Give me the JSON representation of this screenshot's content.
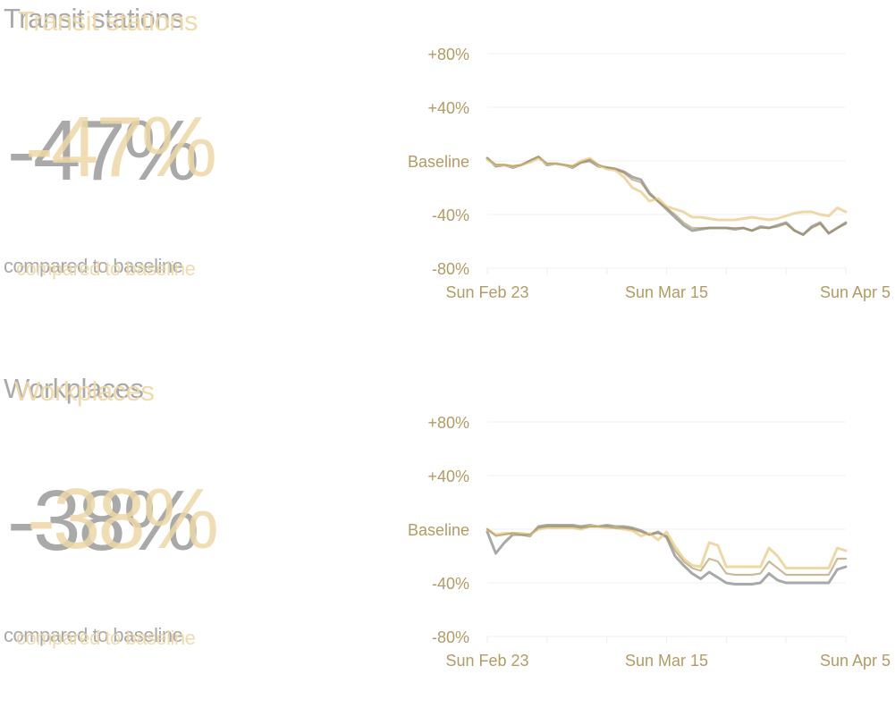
{
  "colors": {
    "gray": "#a9a9a9",
    "gold": "#eed8a6",
    "olive": "#9c8546",
    "axis_text": "#b39b63",
    "gridline": "#f2f2f2"
  },
  "panels": [
    {
      "title": "Transit stations",
      "value": "-47%",
      "caption": "compared to baseline"
    },
    {
      "title": "Workplaces",
      "value": "-38%",
      "caption": "compared to baseline"
    }
  ],
  "chart_data": [
    {
      "type": "line",
      "title": "",
      "xlabel": "",
      "ylabel": "",
      "ylim": [
        -80,
        80
      ],
      "y_ticks": [
        "+80%",
        "+40%",
        "Baseline",
        "-40%",
        "-80%"
      ],
      "x_ticks": [
        "Sun Feb 23",
        "Sun Mar 15",
        "Sun Apr 5"
      ],
      "x": [
        "2020-02-23",
        "2020-02-24",
        "2020-02-25",
        "2020-02-26",
        "2020-02-27",
        "2020-02-28",
        "2020-02-29",
        "2020-03-01",
        "2020-03-02",
        "2020-03-03",
        "2020-03-04",
        "2020-03-05",
        "2020-03-06",
        "2020-03-07",
        "2020-03-08",
        "2020-03-09",
        "2020-03-10",
        "2020-03-11",
        "2020-03-12",
        "2020-03-13",
        "2020-03-14",
        "2020-03-15",
        "2020-03-16",
        "2020-03-17",
        "2020-03-18",
        "2020-03-19",
        "2020-03-20",
        "2020-03-21",
        "2020-03-22",
        "2020-03-23",
        "2020-03-24",
        "2020-03-25",
        "2020-03-26",
        "2020-03-27",
        "2020-03-28",
        "2020-03-29",
        "2020-03-30",
        "2020-03-31",
        "2020-04-01",
        "2020-04-02",
        "2020-04-03",
        "2020-04-04",
        "2020-04-05"
      ],
      "series": [
        {
          "color": "#a9a9a9",
          "values": [
            2,
            -4,
            -3,
            -5,
            -3,
            0,
            3,
            -3,
            -2,
            -3,
            -5,
            -1,
            0,
            -4,
            -5,
            -6,
            -8,
            -12,
            -14,
            -24,
            -30,
            -36,
            -42,
            -48,
            -52,
            -51,
            -50,
            -50,
            -50,
            -51,
            -50,
            -52,
            -49,
            -50,
            -48,
            -46,
            -52,
            -55,
            -49,
            -46,
            -54,
            -50,
            -46
          ]
        },
        {
          "color": "#eed8a6",
          "values": [
            1,
            -3,
            -3,
            -4,
            -3,
            -1,
            2,
            -2,
            -2,
            -3,
            -4,
            0,
            2,
            -3,
            -6,
            -7,
            -12,
            -20,
            -23,
            -30,
            -28,
            -34,
            -36,
            -38,
            -42,
            -42,
            -43,
            -44,
            -44,
            -44,
            -43,
            -42,
            -43,
            -44,
            -43,
            -41,
            -39,
            -38,
            -38,
            -40,
            -41,
            -35,
            -38
          ]
        },
        {
          "color": "#9c8546",
          "values": [
            2,
            -3,
            -3,
            -4,
            -3,
            0,
            3,
            -2,
            -2,
            -3,
            -4,
            -1,
            1,
            -3,
            -5,
            -6,
            -9,
            -14,
            -16,
            -25,
            -30,
            -35,
            -40,
            -46,
            -50,
            -50,
            -50,
            -50,
            -50,
            -50,
            -50,
            -52,
            -50,
            -50,
            -49,
            -47,
            -52,
            -55,
            -50,
            -47,
            -54,
            -50,
            -47
          ]
        }
      ]
    },
    {
      "type": "line",
      "title": "",
      "xlabel": "",
      "ylabel": "",
      "ylim": [
        -80,
        80
      ],
      "y_ticks": [
        "+80%",
        "+40%",
        "Baseline",
        "-40%",
        "-80%"
      ],
      "x_ticks": [
        "Sun Feb 23",
        "Sun Mar 15",
        "Sun Apr 5"
      ],
      "x": [
        "2020-02-23",
        "2020-02-24",
        "2020-02-25",
        "2020-02-26",
        "2020-02-27",
        "2020-02-28",
        "2020-02-29",
        "2020-03-01",
        "2020-03-02",
        "2020-03-03",
        "2020-03-04",
        "2020-03-05",
        "2020-03-06",
        "2020-03-07",
        "2020-03-08",
        "2020-03-09",
        "2020-03-10",
        "2020-03-11",
        "2020-03-12",
        "2020-03-13",
        "2020-03-14",
        "2020-03-15",
        "2020-03-16",
        "2020-03-17",
        "2020-03-18",
        "2020-03-19",
        "2020-03-20",
        "2020-03-21",
        "2020-03-22",
        "2020-03-23",
        "2020-03-24",
        "2020-03-25",
        "2020-03-26",
        "2020-03-27",
        "2020-03-28",
        "2020-03-29",
        "2020-03-30",
        "2020-03-31",
        "2020-04-01",
        "2020-04-02",
        "2020-04-03",
        "2020-04-04",
        "2020-04-05"
      ],
      "series": [
        {
          "color": "#a9a9a9",
          "values": [
            -2,
            -18,
            -10,
            -4,
            -4,
            -5,
            2,
            3,
            3,
            3,
            3,
            2,
            3,
            2,
            3,
            2,
            2,
            1,
            -1,
            -4,
            -2,
            -6,
            -20,
            -27,
            -33,
            -37,
            -32,
            -36,
            -40,
            -41,
            -41,
            -41,
            -40,
            -33,
            -38,
            -40,
            -40,
            -40,
            -40,
            -40,
            -40,
            -30,
            -28
          ]
        },
        {
          "color": "#eed8a6",
          "values": [
            0,
            -4,
            -3,
            -3,
            -3,
            -4,
            0,
            1,
            1,
            1,
            1,
            0,
            2,
            2,
            1,
            1,
            0,
            -1,
            -5,
            -3,
            -8,
            -2,
            -13,
            -22,
            -27,
            -28,
            -10,
            -12,
            -28,
            -28,
            -28,
            -28,
            -28,
            -14,
            -20,
            -29,
            -29,
            -29,
            -29,
            -29,
            -29,
            -14,
            -16
          ]
        },
        {
          "color": "#9c8546",
          "values": [
            0,
            -5,
            -4,
            -3,
            -4,
            -4,
            1,
            2,
            2,
            2,
            2,
            1,
            2,
            2,
            2,
            1,
            1,
            0,
            -2,
            -4,
            -3,
            -5,
            -16,
            -24,
            -29,
            -31,
            -22,
            -24,
            -33,
            -34,
            -34,
            -34,
            -33,
            -24,
            -29,
            -34,
            -34,
            -34,
            -34,
            -34,
            -34,
            -22,
            -22
          ]
        }
      ]
    }
  ]
}
